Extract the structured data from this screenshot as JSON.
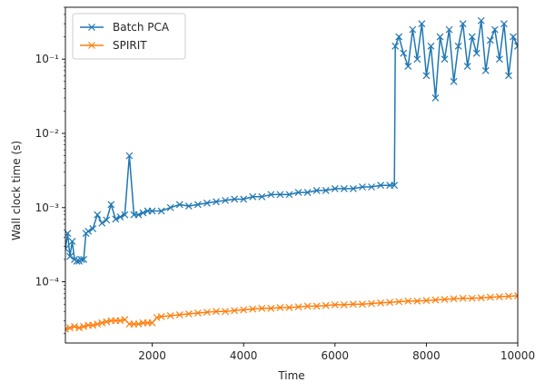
{
  "chart_data": {
    "type": "line",
    "title": "",
    "xlabel": "Time",
    "ylabel": "Wall clock time (s)",
    "xlim": [
      100,
      10000
    ],
    "ylim": [
      1.5e-05,
      0.5
    ],
    "yscale": "log",
    "grid": false,
    "legend_position": "top-left",
    "x_ticks": [
      2000,
      4000,
      6000,
      8000,
      10000
    ],
    "x_tick_labels": [
      "2000",
      "4000",
      "6000",
      "8000",
      "10000"
    ],
    "y_ticks": [
      0.0001,
      0.001,
      0.01,
      0.1
    ],
    "y_tick_labels": [
      "10⁻⁴",
      "10⁻³",
      "10⁻²",
      "10⁻¹"
    ],
    "series": [
      {
        "name": "Batch PCA",
        "color": "#1f77b4",
        "marker": "x",
        "x": [
          100,
          150,
          200,
          250,
          300,
          350,
          400,
          450,
          500,
          550,
          600,
          700,
          800,
          900,
          1000,
          1100,
          1200,
          1300,
          1400,
          1500,
          1600,
          1700,
          1800,
          1900,
          2000,
          2200,
          2400,
          2600,
          2800,
          3000,
          3200,
          3400,
          3600,
          3800,
          4000,
          4200,
          4400,
          4600,
          4800,
          5000,
          5200,
          5400,
          5600,
          5800,
          6000,
          6200,
          6400,
          6600,
          6800,
          7000,
          7200,
          7300,
          7320,
          7400,
          7500,
          7600,
          7700,
          7800,
          7900,
          8000,
          8100,
          8200,
          8300,
          8400,
          8500,
          8600,
          8700,
          8800,
          8900,
          9000,
          9100,
          9200,
          9300,
          9400,
          9500,
          9600,
          9700,
          9800,
          9900,
          10000
        ],
        "y": [
          0.00028,
          0.00045,
          0.00022,
          0.00035,
          0.0002,
          0.00019,
          0.00019,
          0.0002,
          0.0002,
          0.00045,
          0.00048,
          0.00052,
          0.0008,
          0.00062,
          0.00068,
          0.0011,
          0.0007,
          0.00075,
          0.0008,
          0.005,
          0.0008,
          0.0008,
          0.00085,
          0.0009,
          0.0009,
          0.0009,
          0.001,
          0.0011,
          0.00105,
          0.0011,
          0.00115,
          0.0012,
          0.00125,
          0.0013,
          0.0013,
          0.0014,
          0.0014,
          0.0015,
          0.0015,
          0.0015,
          0.0016,
          0.0016,
          0.0017,
          0.0017,
          0.0018,
          0.0018,
          0.0018,
          0.0019,
          0.0019,
          0.002,
          0.002,
          0.002,
          0.15,
          0.2,
          0.12,
          0.08,
          0.25,
          0.1,
          0.3,
          0.06,
          0.15,
          0.03,
          0.2,
          0.1,
          0.25,
          0.05,
          0.15,
          0.3,
          0.08,
          0.2,
          0.12,
          0.33,
          0.07,
          0.18,
          0.25,
          0.1,
          0.3,
          0.06,
          0.2,
          0.15
        ]
      },
      {
        "name": "SPIRIT",
        "color": "#ff7f0e",
        "marker": "x",
        "x": [
          100,
          200,
          300,
          400,
          500,
          600,
          700,
          800,
          900,
          1000,
          1100,
          1200,
          1300,
          1400,
          1500,
          1600,
          1700,
          1800,
          1900,
          2000,
          2100,
          2200,
          2400,
          2600,
          2800,
          3000,
          3200,
          3400,
          3600,
          3800,
          4000,
          4200,
          4400,
          4600,
          4800,
          5000,
          5200,
          5400,
          5600,
          5800,
          6000,
          6200,
          6400,
          6600,
          6800,
          7000,
          7200,
          7400,
          7600,
          7800,
          8000,
          8200,
          8400,
          8600,
          8800,
          9000,
          9200,
          9400,
          9600,
          9800,
          10000
        ],
        "y": [
          2.3e-05,
          2.4e-05,
          2.5e-05,
          2.4e-05,
          2.5e-05,
          2.6e-05,
          2.6e-05,
          2.7e-05,
          2.8e-05,
          2.9e-05,
          3e-05,
          3e-05,
          3e-05,
          3.1e-05,
          2.7e-05,
          2.7e-05,
          2.7e-05,
          2.8e-05,
          2.8e-05,
          2.8e-05,
          3.3e-05,
          3.4e-05,
          3.5e-05,
          3.6e-05,
          3.7e-05,
          3.8e-05,
          3.9e-05,
          4e-05,
          4e-05,
          4.1e-05,
          4.2e-05,
          4.3e-05,
          4.4e-05,
          4.4e-05,
          4.5e-05,
          4.5e-05,
          4.6e-05,
          4.7e-05,
          4.7e-05,
          4.8e-05,
          4.9e-05,
          4.9e-05,
          5e-05,
          5e-05,
          5.1e-05,
          5.2e-05,
          5.3e-05,
          5.4e-05,
          5.5e-05,
          5.5e-05,
          5.6e-05,
          5.7e-05,
          5.8e-05,
          5.9e-05,
          6e-05,
          6e-05,
          6.1e-05,
          6.2e-05,
          6.3e-05,
          6.4e-05,
          6.5e-05
        ]
      }
    ]
  }
}
